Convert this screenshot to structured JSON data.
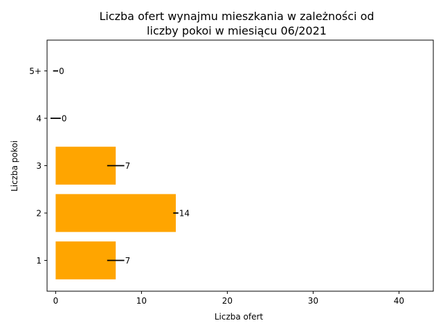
{
  "chart_data": {
    "type": "bar",
    "orientation": "horizontal",
    "title_lines": [
      "Liczba ofert wynajmu mieszkania w zależności od",
      "liczby pokoi w miesiącu 06/2021"
    ],
    "xlabel": "Liczba ofert",
    "ylabel": "Liczba pokoi",
    "categories": [
      "1",
      "2",
      "3",
      "4",
      "5+"
    ],
    "values": [
      7,
      14,
      7,
      0,
      0
    ],
    "error": [
      1,
      0.3,
      1,
      0.6,
      0.3
    ],
    "data_labels": [
      "7",
      "14",
      "7",
      "0",
      "0"
    ],
    "xlim": [
      -1,
      44
    ],
    "x_ticks": [
      0,
      10,
      20,
      30,
      40
    ],
    "bar_color": "#FFA500",
    "error_color": "#000000",
    "grid": false,
    "legend": "none"
  }
}
